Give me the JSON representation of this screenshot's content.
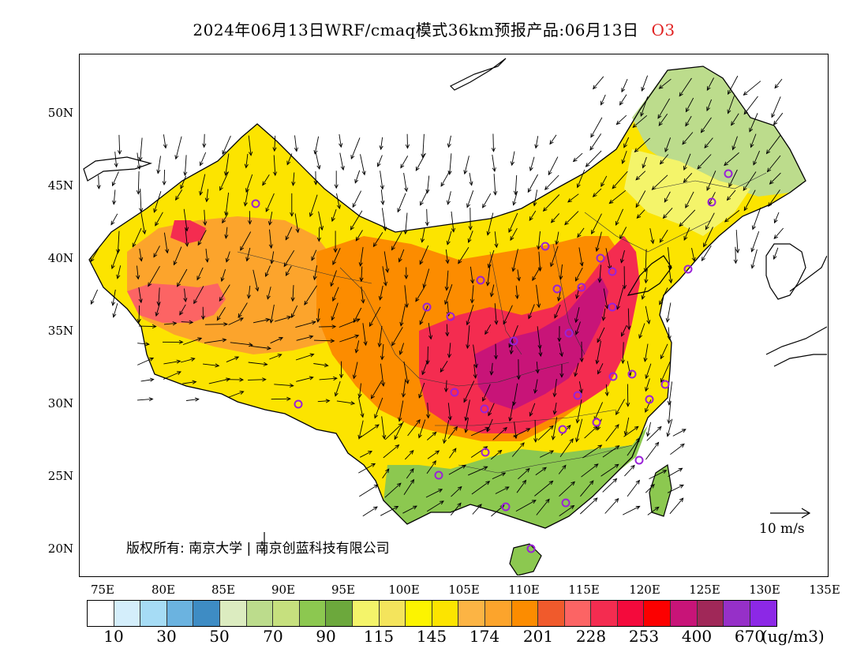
{
  "title": {
    "main": "2024年06月13日WRF/cmaq模式36km预报产品:06月13日",
    "species": "O3",
    "species_color": "#e02020"
  },
  "map": {
    "lat_labels": [
      "50N",
      "45N",
      "40N",
      "35N",
      "30N",
      "25N",
      "20N"
    ],
    "lon_labels": [
      "75E",
      "80E",
      "85E",
      "90E",
      "95E",
      "100E",
      "105E",
      "110E",
      "115E",
      "120E",
      "125E",
      "130E",
      "135E"
    ],
    "copyright": "版权所有: 南京大学 | 南京创蓝科技有限公司",
    "wind_reference": "10 m/s",
    "stations_marker": "circle"
  },
  "legend": {
    "colors": [
      "#ffffff",
      "#d4eefb",
      "#a6dcf5",
      "#6bb3e0",
      "#3e8cc4",
      "#dcecc0",
      "#bcdc8c",
      "#c6e07e",
      "#8cc850",
      "#6ca83c",
      "#f4f46a",
      "#f4e45c",
      "#fcf400",
      "#fce400",
      "#fcb444",
      "#fca42c",
      "#fc8c00",
      "#f05a2c",
      "#fc6464",
      "#f42c50",
      "#f40a3c",
      "#fc0000",
      "#c81478",
      "#a02858",
      "#9630c8",
      "#8c28e6"
    ],
    "labels": [
      "10",
      "30",
      "50",
      "70",
      "90",
      "115",
      "145",
      "174",
      "201",
      "228",
      "253",
      "400",
      "670"
    ],
    "unit": "(ug/m3)"
  }
}
